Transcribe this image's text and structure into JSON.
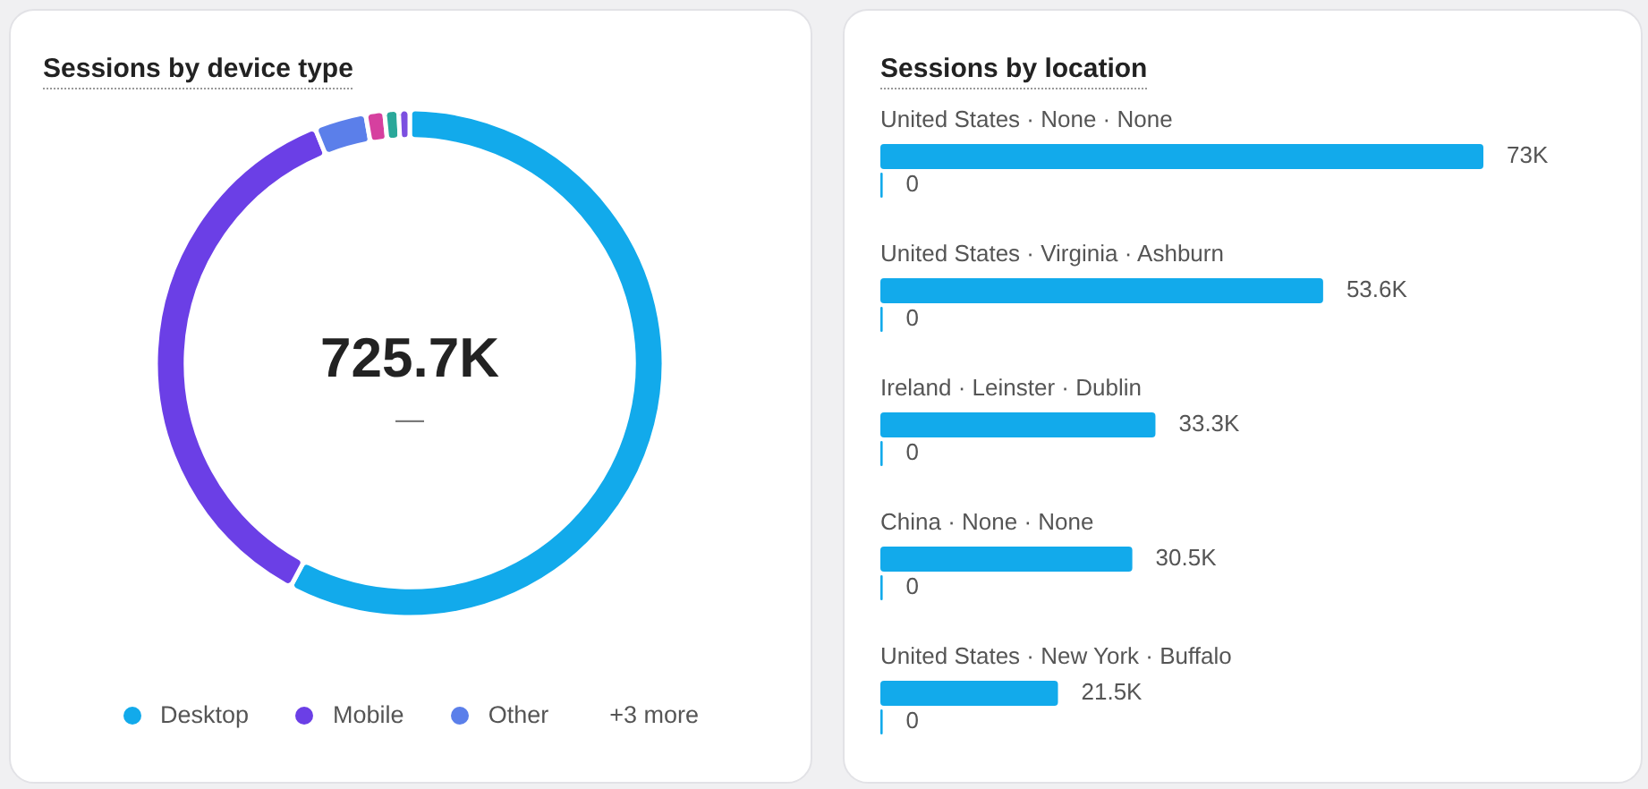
{
  "chart_data": [
    {
      "type": "donut",
      "title": "Sessions by device type",
      "categories": [
        "Desktop",
        "Mobile",
        "Other",
        null,
        null,
        null
      ],
      "values": [
        57.8,
        36.1,
        3.3,
        1.2,
        0.9,
        0.7
      ],
      "colors": [
        "#12aaeb",
        "#6b3fe6",
        "#5b7fea",
        "#d6409f",
        "#2aa89a",
        "#7c4fe0"
      ],
      "legend": "bottom",
      "annotations": [
        "725.7K",
        "—",
        "+3 more"
      ]
    },
    {
      "type": "bar",
      "orientation": "horizontal",
      "title": "Sessions by location",
      "categories": [
        "United States · None · None",
        "United States · Virginia · Ashburn",
        "Ireland · Leinster · Dublin",
        "China · None · None",
        "United States · New York · Buffalo"
      ],
      "series": [
        {
          "color": "#12aaeb",
          "values": [
            73000,
            53600,
            33300,
            30500,
            21500
          ],
          "value_labels": [
            "73K",
            "53.6K",
            "33.3K",
            "30.5K",
            "21.5K"
          ]
        },
        {
          "color": "#12aaeb",
          "values": [
            0,
            0,
            0,
            0,
            0
          ],
          "value_labels": [
            "0",
            "0",
            "0",
            "0",
            "0"
          ]
        }
      ]
    }
  ]
}
